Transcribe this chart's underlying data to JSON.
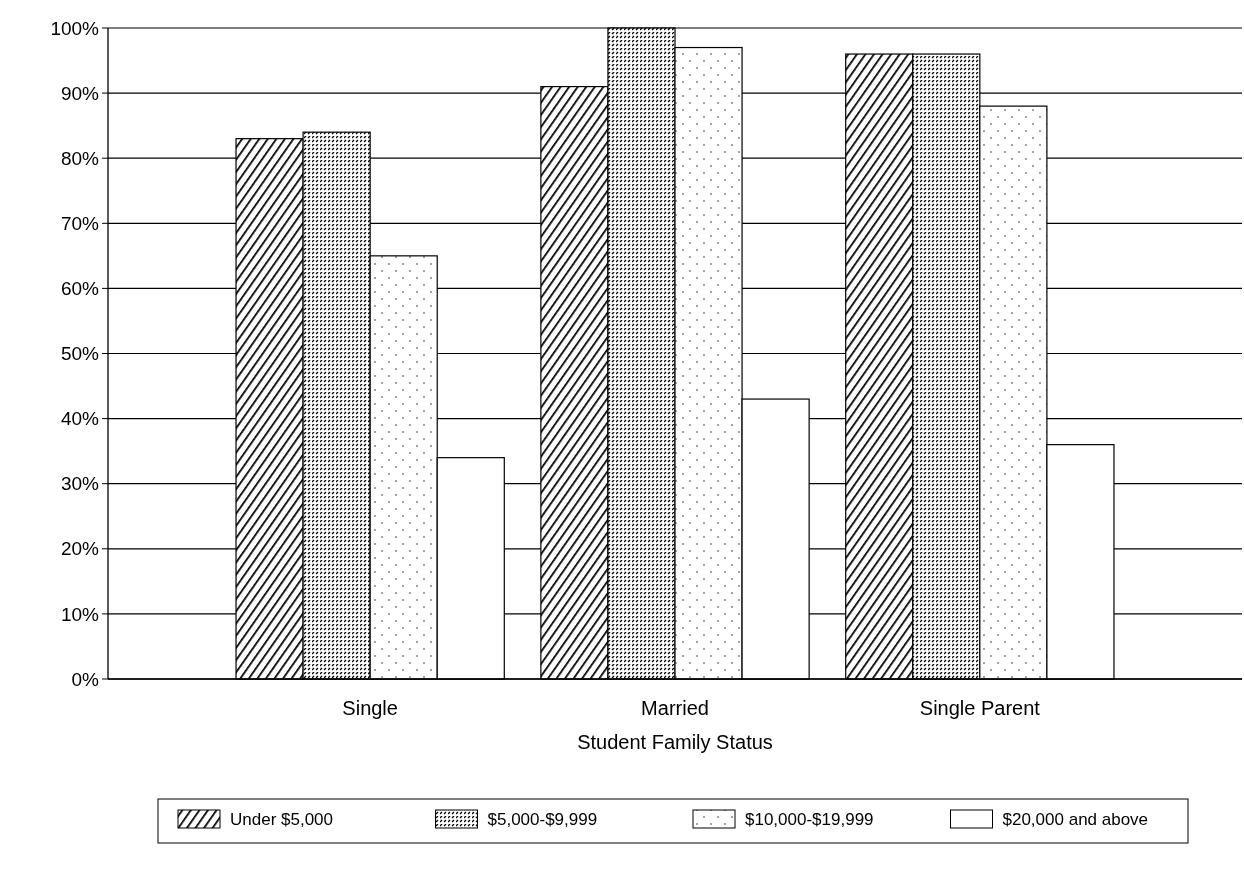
{
  "chart_data": {
    "type": "bar",
    "xlabel": "Student Family Status",
    "categories": [
      "Single",
      "Married",
      "Single Parent"
    ],
    "series": [
      {
        "name": "Under $5,000",
        "color": "#000000",
        "values": [
          83,
          91,
          96
        ]
      },
      {
        "name": "$5,000-$9,999",
        "color": "#000000",
        "values": [
          84,
          100,
          96
        ]
      },
      {
        "name": "$10,000-$19,999",
        "color": "#000000",
        "values": [
          65,
          97,
          88
        ]
      },
      {
        "name": "$20,000 and above",
        "color": "#000000",
        "values": [
          34,
          43,
          36
        ]
      }
    ],
    "ylim": [
      0,
      100
    ],
    "yticks": [
      {
        "value": 0,
        "label": "0%"
      },
      {
        "value": 10,
        "label": "10%"
      },
      {
        "value": 20,
        "label": "20%"
      },
      {
        "value": 30,
        "label": "30%"
      },
      {
        "value": 40,
        "label": "40%"
      },
      {
        "value": 50,
        "label": "50%"
      },
      {
        "value": 60,
        "label": "60%"
      },
      {
        "value": 70,
        "label": "70%"
      },
      {
        "value": 80,
        "label": "80%"
      },
      {
        "value": 90,
        "label": "90%"
      },
      {
        "value": 100,
        "label": "100%"
      }
    ],
    "grid": "y",
    "legend": "bottom"
  }
}
